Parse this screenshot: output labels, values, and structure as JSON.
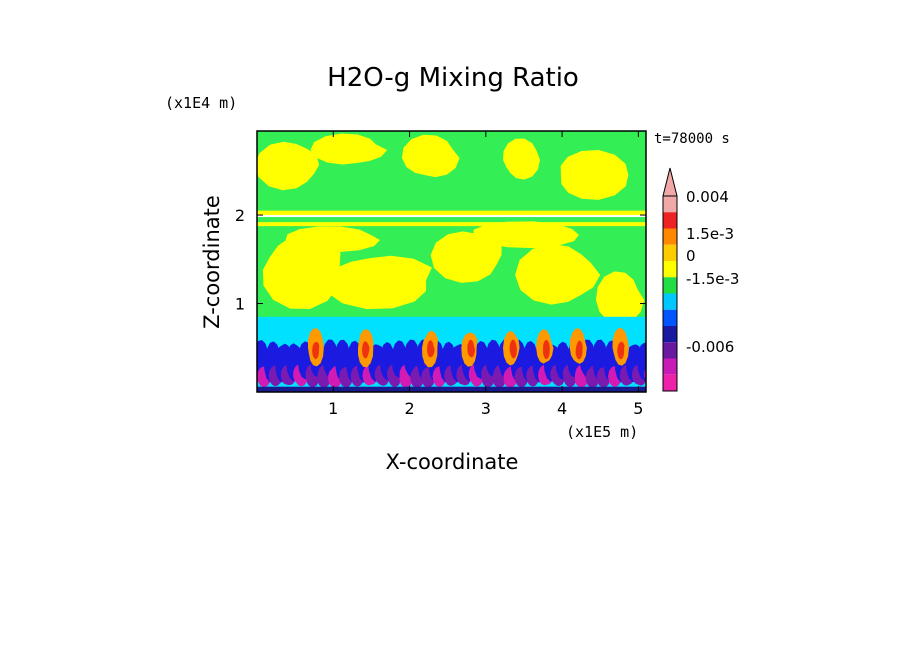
{
  "chart_data": {
    "type": "heatmap",
    "title": "H2O-g Mixing Ratio",
    "xlabel": "X-coordinate",
    "ylabel": "Z-coordinate",
    "x_scale_label": "(x1E5 m)",
    "y_scale_label": "(x1E4 m)",
    "time_label": "t=78000 s",
    "x_ticks": [
      "1",
      "2",
      "3",
      "4",
      "5"
    ],
    "x_tick_values": [
      1,
      2,
      3,
      4,
      5
    ],
    "y_ticks": [
      "1",
      "2"
    ],
    "y_tick_values": [
      1,
      2
    ],
    "xlim": [
      0,
      5.1
    ],
    "ylim": [
      0,
      2.95
    ],
    "colorbar": {
      "labels": [
        "0.004",
        "1.5e-3",
        "0",
        "-1.5e-3",
        "-0.006"
      ],
      "colors": [
        "#f0a8a8",
        "#ee2222",
        "#ff8800",
        "#ffcc00",
        "#ffff00",
        "#22dd44",
        "#00c8ff",
        "#0055ff",
        "#1a1aa0",
        "#6a1aa0",
        "#c81ab4",
        "#ee22aa"
      ]
    },
    "palette": {
      "green": "#33ee55",
      "yellow": "#ffff00",
      "lightyellow": "#ffee33",
      "cyan": "#00e0ff",
      "blue": "#1a1ae0",
      "navy": "#1a1a90",
      "purple": "#7a1ab0",
      "magenta": "#d21ab4",
      "orange": "#ff9900",
      "red": "#ee3311"
    }
  }
}
